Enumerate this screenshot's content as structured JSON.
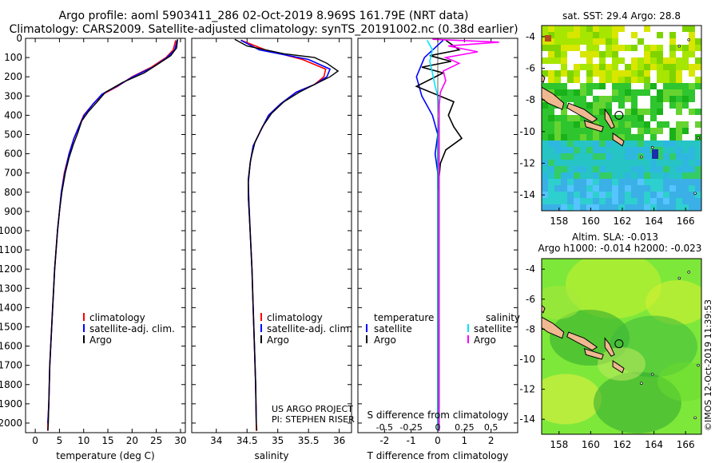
{
  "header": {
    "title_line1": "Argo profile: aoml 5903411_286 02-Oct-2019 8.969S 161.79E (NRT data)",
    "title_line2": "Climatology: CARS2009. Satellite-adjusted climatology: synTS_20191002.nc (0.38d earlier)"
  },
  "colors": {
    "climatology": "#ff0000",
    "satellite": "#0000ff",
    "argo": "#000000",
    "argo_salinity": "#ff00ff",
    "satellite_salinity": "#00e5ff"
  },
  "chart_data": [
    {
      "type": "line",
      "xlabel": "temperature (deg C)",
      "ylabel": "",
      "xlim": [
        -2,
        31
      ],
      "ylim": [
        2050,
        0
      ],
      "x_ticks": [
        "0",
        "5",
        "10",
        "15",
        "20",
        "25",
        "30"
      ],
      "y_ticks": [
        "0",
        "100",
        "200",
        "300",
        "400",
        "500",
        "600",
        "700",
        "800",
        "900",
        "1000",
        "1100",
        "1200",
        "1300",
        "1400",
        "1500",
        "1600",
        "1700",
        "1800",
        "1900",
        "2000"
      ],
      "legend": [
        "climatology",
        "satellite-adj. clim.",
        "Argo"
      ],
      "series": [
        {
          "name": "climatology",
          "points": [
            [
              29,
              10
            ],
            [
              28.5,
              60
            ],
            [
              27,
              100
            ],
            [
              24,
              150
            ],
            [
              20,
              200
            ],
            [
              17,
              250
            ],
            [
              14,
              290
            ],
            [
              12,
              340
            ],
            [
              10,
              400
            ],
            [
              9,
              460
            ],
            [
              8,
              520
            ],
            [
              7,
              600
            ],
            [
              6,
              700
            ],
            [
              5.4,
              800
            ],
            [
              5,
              900
            ],
            [
              4.6,
              1000
            ],
            [
              4.3,
              1100
            ],
            [
              4,
              1200
            ],
            [
              3.8,
              1300
            ],
            [
              3.6,
              1400
            ],
            [
              3.4,
              1500
            ],
            [
              3.2,
              1600
            ],
            [
              3,
              1700
            ],
            [
              2.9,
              1800
            ],
            [
              2.8,
              1900
            ],
            [
              2.6,
              2000
            ],
            [
              2.6,
              2040
            ]
          ]
        },
        {
          "name": "satellite-adj. clim.",
          "points": [
            [
              29.3,
              10
            ],
            [
              28.8,
              60
            ],
            [
              27.2,
              100
            ],
            [
              24.3,
              150
            ],
            [
              20.2,
              200
            ],
            [
              16.8,
              250
            ],
            [
              13.8,
              290
            ],
            [
              12,
              340
            ],
            [
              10.1,
              400
            ],
            [
              9,
              460
            ],
            [
              8,
              520
            ],
            [
              7,
              600
            ],
            [
              6.1,
              700
            ],
            [
              5.4,
              800
            ],
            [
              5,
              900
            ],
            [
              4.6,
              1000
            ],
            [
              4.3,
              1100
            ],
            [
              4,
              1200
            ],
            [
              3.8,
              1300
            ],
            [
              3.6,
              1400
            ],
            [
              3.4,
              1500
            ],
            [
              3.2,
              1600
            ],
            [
              3,
              1700
            ],
            [
              2.9,
              1800
            ],
            [
              2.8,
              1900
            ],
            [
              2.6,
              2000
            ]
          ]
        },
        {
          "name": "Argo",
          "points": [
            [
              29.4,
              5
            ],
            [
              29.2,
              50
            ],
            [
              28,
              90
            ],
            [
              25,
              140
            ],
            [
              22.5,
              180
            ],
            [
              18,
              230
            ],
            [
              14.5,
              280
            ],
            [
              12.8,
              330
            ],
            [
              11,
              380
            ],
            [
              9.6,
              430
            ],
            [
              8.8,
              490
            ],
            [
              7.9,
              550
            ],
            [
              7,
              620
            ],
            [
              6.2,
              700
            ],
            [
              5.5,
              800
            ],
            [
              5,
              900
            ],
            [
              4.6,
              1000
            ],
            [
              4.3,
              1100
            ],
            [
              4,
              1200
            ],
            [
              3.8,
              1300
            ],
            [
              3.6,
              1400
            ],
            [
              3.4,
              1500
            ],
            [
              3.2,
              1600
            ],
            [
              3,
              1700
            ],
            [
              2.9,
              1800
            ],
            [
              2.8,
              1900
            ],
            [
              2.7,
              2000
            ],
            [
              2.6,
              2040
            ]
          ]
        }
      ]
    },
    {
      "type": "line",
      "xlabel": "salinity",
      "xlim": [
        33.6,
        36.2
      ],
      "ylim": [
        2050,
        0
      ],
      "x_ticks": [
        "34",
        "34.5",
        "35",
        "35.5",
        "36"
      ],
      "legend": [
        "climatology",
        "satellite-adj. clim.",
        "Argo"
      ],
      "annotation": [
        "US ARGO PROJECT",
        "PI: STEPHEN RISER"
      ],
      "series": [
        {
          "name": "climatology",
          "points": [
            [
              34.4,
              10
            ],
            [
              34.8,
              60
            ],
            [
              35.4,
              110
            ],
            [
              35.78,
              160
            ],
            [
              35.75,
              200
            ],
            [
              35.6,
              240
            ],
            [
              35.3,
              280
            ],
            [
              35.05,
              340
            ],
            [
              34.85,
              400
            ],
            [
              34.72,
              480
            ],
            [
              34.6,
              560
            ],
            [
              34.55,
              650
            ],
            [
              34.52,
              750
            ],
            [
              34.53,
              850
            ],
            [
              34.55,
              1000
            ],
            [
              34.58,
              1200
            ],
            [
              34.6,
              1400
            ],
            [
              34.62,
              1600
            ],
            [
              34.64,
              1800
            ],
            [
              34.65,
              2000
            ],
            [
              34.65,
              2040
            ]
          ]
        },
        {
          "name": "satellite-adj. clim.",
          "points": [
            [
              34.4,
              10
            ],
            [
              34.7,
              60
            ],
            [
              35.5,
              110
            ],
            [
              35.85,
              160
            ],
            [
              35.8,
              200
            ],
            [
              35.6,
              240
            ],
            [
              35.3,
              280
            ],
            [
              35.05,
              340
            ],
            [
              34.85,
              400
            ],
            [
              34.72,
              480
            ],
            [
              34.6,
              560
            ],
            [
              34.55,
              650
            ],
            [
              34.52,
              750
            ],
            [
              34.53,
              850
            ],
            [
              34.55,
              1000
            ],
            [
              34.58,
              1200
            ],
            [
              34.6,
              1400
            ],
            [
              34.62,
              1600
            ],
            [
              34.64,
              1800
            ],
            [
              34.65,
              2000
            ]
          ]
        },
        {
          "name": "Argo",
          "points": [
            [
              34.3,
              5
            ],
            [
              34.5,
              40
            ],
            [
              35.1,
              80
            ],
            [
              35.6,
              100
            ],
            [
              35.8,
              130
            ],
            [
              35.98,
              170
            ],
            [
              35.85,
              200
            ],
            [
              35.6,
              240
            ],
            [
              35.35,
              280
            ],
            [
              35.1,
              330
            ],
            [
              34.9,
              390
            ],
            [
              34.75,
              460
            ],
            [
              34.63,
              540
            ],
            [
              34.56,
              630
            ],
            [
              34.52,
              730
            ],
            [
              34.52,
              830
            ],
            [
              34.55,
              1000
            ],
            [
              34.58,
              1200
            ],
            [
              34.6,
              1400
            ],
            [
              34.62,
              1600
            ],
            [
              34.64,
              1800
            ],
            [
              34.65,
              2000
            ],
            [
              34.66,
              2040
            ]
          ]
        }
      ]
    },
    {
      "type": "line",
      "xlabel": "T difference from climatology",
      "xlabel_top": "S difference from climatology",
      "xlim": [
        -3,
        3
      ],
      "ylim": [
        2050,
        0
      ],
      "x_ticks": [
        "-2",
        "-1",
        "0",
        "1",
        "2"
      ],
      "x_ticks_top": [
        "-0.5",
        "-0.25",
        "0",
        "0.25",
        "0.5"
      ],
      "legend_left_title": "temperature",
      "legend_right_title": "salinity",
      "legend_left": [
        "satellite",
        "Argo"
      ],
      "legend_right": [
        "satellite",
        "Argo"
      ],
      "series": [
        {
          "name": "temperature satellite",
          "points": [
            [
              0.2,
              10
            ],
            [
              -0.5,
              100
            ],
            [
              -0.8,
              200
            ],
            [
              -0.6,
              300
            ],
            [
              -0.2,
              400
            ],
            [
              0,
              500
            ],
            [
              -0.1,
              600
            ],
            [
              0,
              700
            ],
            [
              0.05,
              800
            ],
            [
              0.05,
              1000
            ],
            [
              0.05,
              1500
            ],
            [
              0.05,
              2040
            ]
          ]
        },
        {
          "name": "temperature Argo",
          "points": [
            [
              0.3,
              10
            ],
            [
              0.8,
              60
            ],
            [
              -0.3,
              90
            ],
            [
              0.5,
              120
            ],
            [
              -0.6,
              150
            ],
            [
              0.2,
              180
            ],
            [
              -0.8,
              250
            ],
            [
              0.6,
              330
            ],
            [
              0.4,
              400
            ],
            [
              0.6,
              460
            ],
            [
              0.9,
              520
            ],
            [
              0.3,
              580
            ],
            [
              0.1,
              650
            ],
            [
              0.05,
              720
            ],
            [
              0.05,
              800
            ],
            [
              0.05,
              1000
            ],
            [
              0.05,
              1500
            ],
            [
              0.05,
              2040
            ]
          ]
        },
        {
          "name": "salinity satellite",
          "points": [
            [
              -0.4,
              10
            ],
            [
              -0.2,
              60
            ],
            [
              -0.3,
              120
            ],
            [
              -0.2,
              180
            ],
            [
              -0.1,
              250
            ],
            [
              0,
              300
            ],
            [
              0.05,
              400
            ],
            [
              0,
              500
            ],
            [
              0,
              700
            ],
            [
              0,
              1000
            ],
            [
              0,
              1500
            ],
            [
              0,
              2040
            ]
          ]
        },
        {
          "name": "salinity Argo",
          "points": [
            [
              -0.2,
              5
            ],
            [
              2.3,
              20
            ],
            [
              0.4,
              40
            ],
            [
              1.5,
              70
            ],
            [
              0.3,
              100
            ],
            [
              0.8,
              130
            ],
            [
              0.2,
              170
            ],
            [
              0.3,
              220
            ],
            [
              0.1,
              280
            ],
            [
              0.05,
              350
            ],
            [
              0.05,
              500
            ],
            [
              0.05,
              1000
            ],
            [
              0.05,
              2040
            ]
          ]
        }
      ]
    }
  ],
  "maps": [
    {
      "title": "sat. SST: 29.4 Argo: 28.8",
      "x_ticks": [
        "158",
        "160",
        "162",
        "164",
        "166"
      ],
      "y_ticks": [
        "-4",
        "-6",
        "-8",
        "-10",
        "-12",
        "-14"
      ],
      "marker": {
        "lon": 161.79,
        "lat": -8.969
      },
      "xlim": [
        156.9,
        167
      ],
      "ylim": [
        -3.3,
        -15
      ]
    },
    {
      "title_line1": "Altim. SLA: -0.013",
      "title_line2": "Argo h1000: -0.014 h2000: -0.023",
      "x_ticks": [
        "158",
        "160",
        "162",
        "164",
        "166"
      ],
      "y_ticks": [
        "-4",
        "-6",
        "-8",
        "-10",
        "-12",
        "-14"
      ],
      "marker": {
        "lon": 161.79,
        "lat": -8.969
      },
      "xlim": [
        156.9,
        167
      ],
      "ylim": [
        -3.3,
        -15
      ]
    }
  ],
  "footer": {
    "stamp": "©IMOS 12-Oct-2019 11:39:53"
  }
}
